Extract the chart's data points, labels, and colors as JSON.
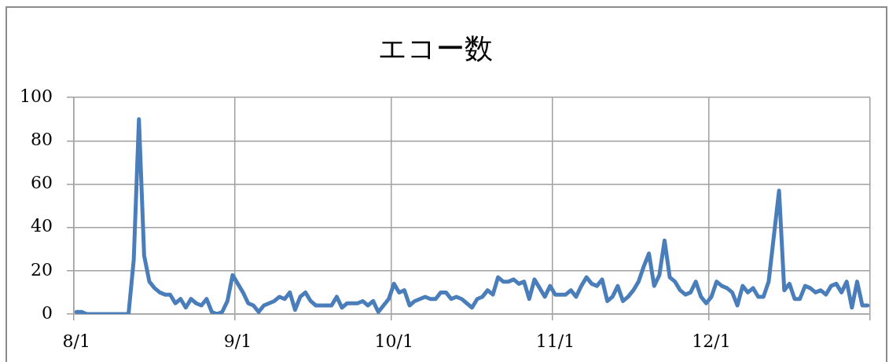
{
  "chart_data": {
    "type": "line",
    "title": "エコー数",
    "categories": [
      "8/1",
      null,
      null,
      null,
      null,
      null,
      null,
      null,
      null,
      null,
      null,
      null,
      null,
      null,
      null,
      null,
      null,
      null,
      null,
      null,
      null,
      null,
      null,
      null,
      null,
      null,
      null,
      null,
      null,
      null,
      null,
      "9/1",
      null,
      null,
      null,
      null,
      null,
      null,
      null,
      null,
      null,
      null,
      null,
      null,
      null,
      null,
      null,
      null,
      null,
      null,
      null,
      null,
      null,
      null,
      null,
      null,
      null,
      null,
      null,
      null,
      null,
      "10/1",
      null,
      null,
      null,
      null,
      null,
      null,
      null,
      null,
      null,
      null,
      null,
      null,
      null,
      null,
      null,
      null,
      null,
      null,
      null,
      null,
      null,
      null,
      null,
      null,
      null,
      null,
      null,
      null,
      null,
      null,
      "11/1",
      null,
      null,
      null,
      null,
      null,
      null,
      null,
      null,
      null,
      null,
      null,
      null,
      null,
      null,
      null,
      null,
      null,
      null,
      null,
      null,
      null,
      null,
      null,
      null,
      null,
      null,
      null,
      null,
      null,
      "12/1",
      null,
      null,
      null,
      null,
      null,
      null,
      null,
      null,
      null,
      null,
      null,
      null,
      null,
      null,
      null,
      null,
      null,
      null,
      null,
      null,
      null,
      null,
      null,
      null,
      null,
      null,
      null,
      null,
      null,
      null
    ],
    "values": [
      1,
      1,
      0,
      0,
      0,
      0,
      0,
      0,
      0,
      0,
      0,
      25,
      90,
      27,
      15,
      12,
      10,
      9,
      9,
      5,
      7,
      3,
      7,
      5,
      4,
      7,
      1,
      0,
      1,
      6,
      18,
      14,
      10,
      5,
      4,
      1,
      4,
      5,
      6,
      8,
      7,
      10,
      2,
      8,
      10,
      6,
      4,
      4,
      4,
      4,
      8,
      3,
      5,
      5,
      5,
      6,
      4,
      6,
      1,
      4,
      7,
      14,
      10,
      11,
      4,
      6,
      7,
      8,
      7,
      7,
      10,
      10,
      7,
      8,
      7,
      5,
      3,
      7,
      8,
      11,
      9,
      17,
      15,
      15,
      16,
      14,
      15,
      7,
      16,
      12,
      8,
      13,
      9,
      9,
      9,
      11,
      8,
      13,
      17,
      14,
      13,
      16,
      6,
      8,
      13,
      6,
      8,
      11,
      15,
      22,
      28,
      13,
      18,
      34,
      17,
      15,
      11,
      9,
      10,
      15,
      8,
      5,
      8,
      15,
      13,
      12,
      10,
      4,
      13,
      10,
      12,
      8,
      8,
      15,
      36,
      57,
      11,
      14,
      7,
      7,
      13,
      12,
      10,
      11,
      9,
      13,
      14,
      10,
      15,
      3,
      15,
      4,
      4
    ],
    "color": "#4a7ebb",
    "ylim": [
      0,
      100
    ],
    "yticks": [
      0,
      20,
      40,
      60,
      80,
      100
    ],
    "grid": true,
    "marker": "none",
    "line_style": "solid"
  }
}
